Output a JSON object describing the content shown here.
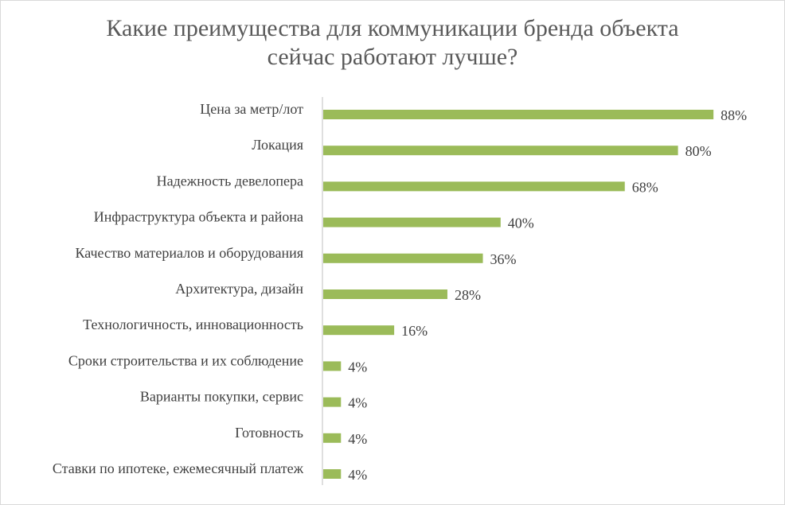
{
  "chart_data": {
    "type": "bar",
    "orientation": "horizontal",
    "title": [
      "Какие преимущества для коммуникации бренда объекта",
      "сейчас работают лучше?"
    ],
    "categories": [
      "Цена за метр/лот",
      "Локация",
      "Надежность девелопера",
      "Инфраструктура объекта и района",
      "Качество материалов и оборудования",
      "Архитектура, дизайн",
      "Технологичность, инновационность",
      "Сроки строительства и их соблюдение",
      "Варианты покупки, сервис",
      "Готовность",
      "Ставки по ипотеке, ежемесячный платеж"
    ],
    "values": [
      88,
      80,
      68,
      40,
      36,
      28,
      16,
      4,
      4,
      4,
      4
    ],
    "value_labels": [
      "88%",
      "80%",
      "68%",
      "40%",
      "36%",
      "28%",
      "16%",
      "4%",
      "4%",
      "4%",
      "4%"
    ],
    "unit": "%",
    "xlim": [
      0,
      100
    ],
    "grid": false,
    "legend": "none",
    "colors": {
      "bar": "#9bbb59",
      "axis": "#bfbfbf",
      "text": "#404040",
      "title": "#595959"
    }
  }
}
